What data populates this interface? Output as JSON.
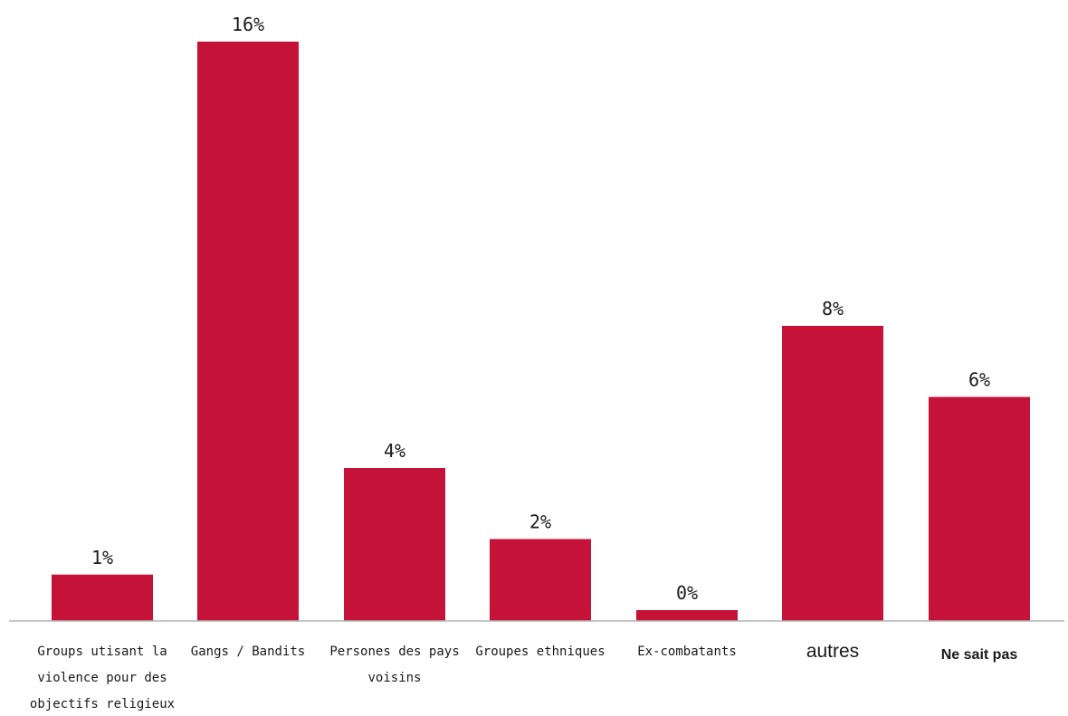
{
  "chart_data": {
    "type": "bar",
    "categories": [
      "Groups utisant la violence pour des objectifs religieux",
      "Gangs / Bandits",
      "Persones des pays voisins",
      "Groupes ethniques",
      "Ex-combatants",
      "autres",
      "Ne sait pas"
    ],
    "values": [
      1,
      16,
      4,
      2,
      0,
      8,
      6
    ],
    "data_labels": [
      "1%",
      "16%",
      "4%",
      "2%",
      "0%",
      "8%",
      "6%"
    ],
    "unit": "%",
    "ylim": [
      0,
      16
    ],
    "grid": false,
    "legend": "none",
    "colors": {
      "bar": "#c41239",
      "axis": "#b3b3b3",
      "text": "#1a1a1a"
    }
  }
}
